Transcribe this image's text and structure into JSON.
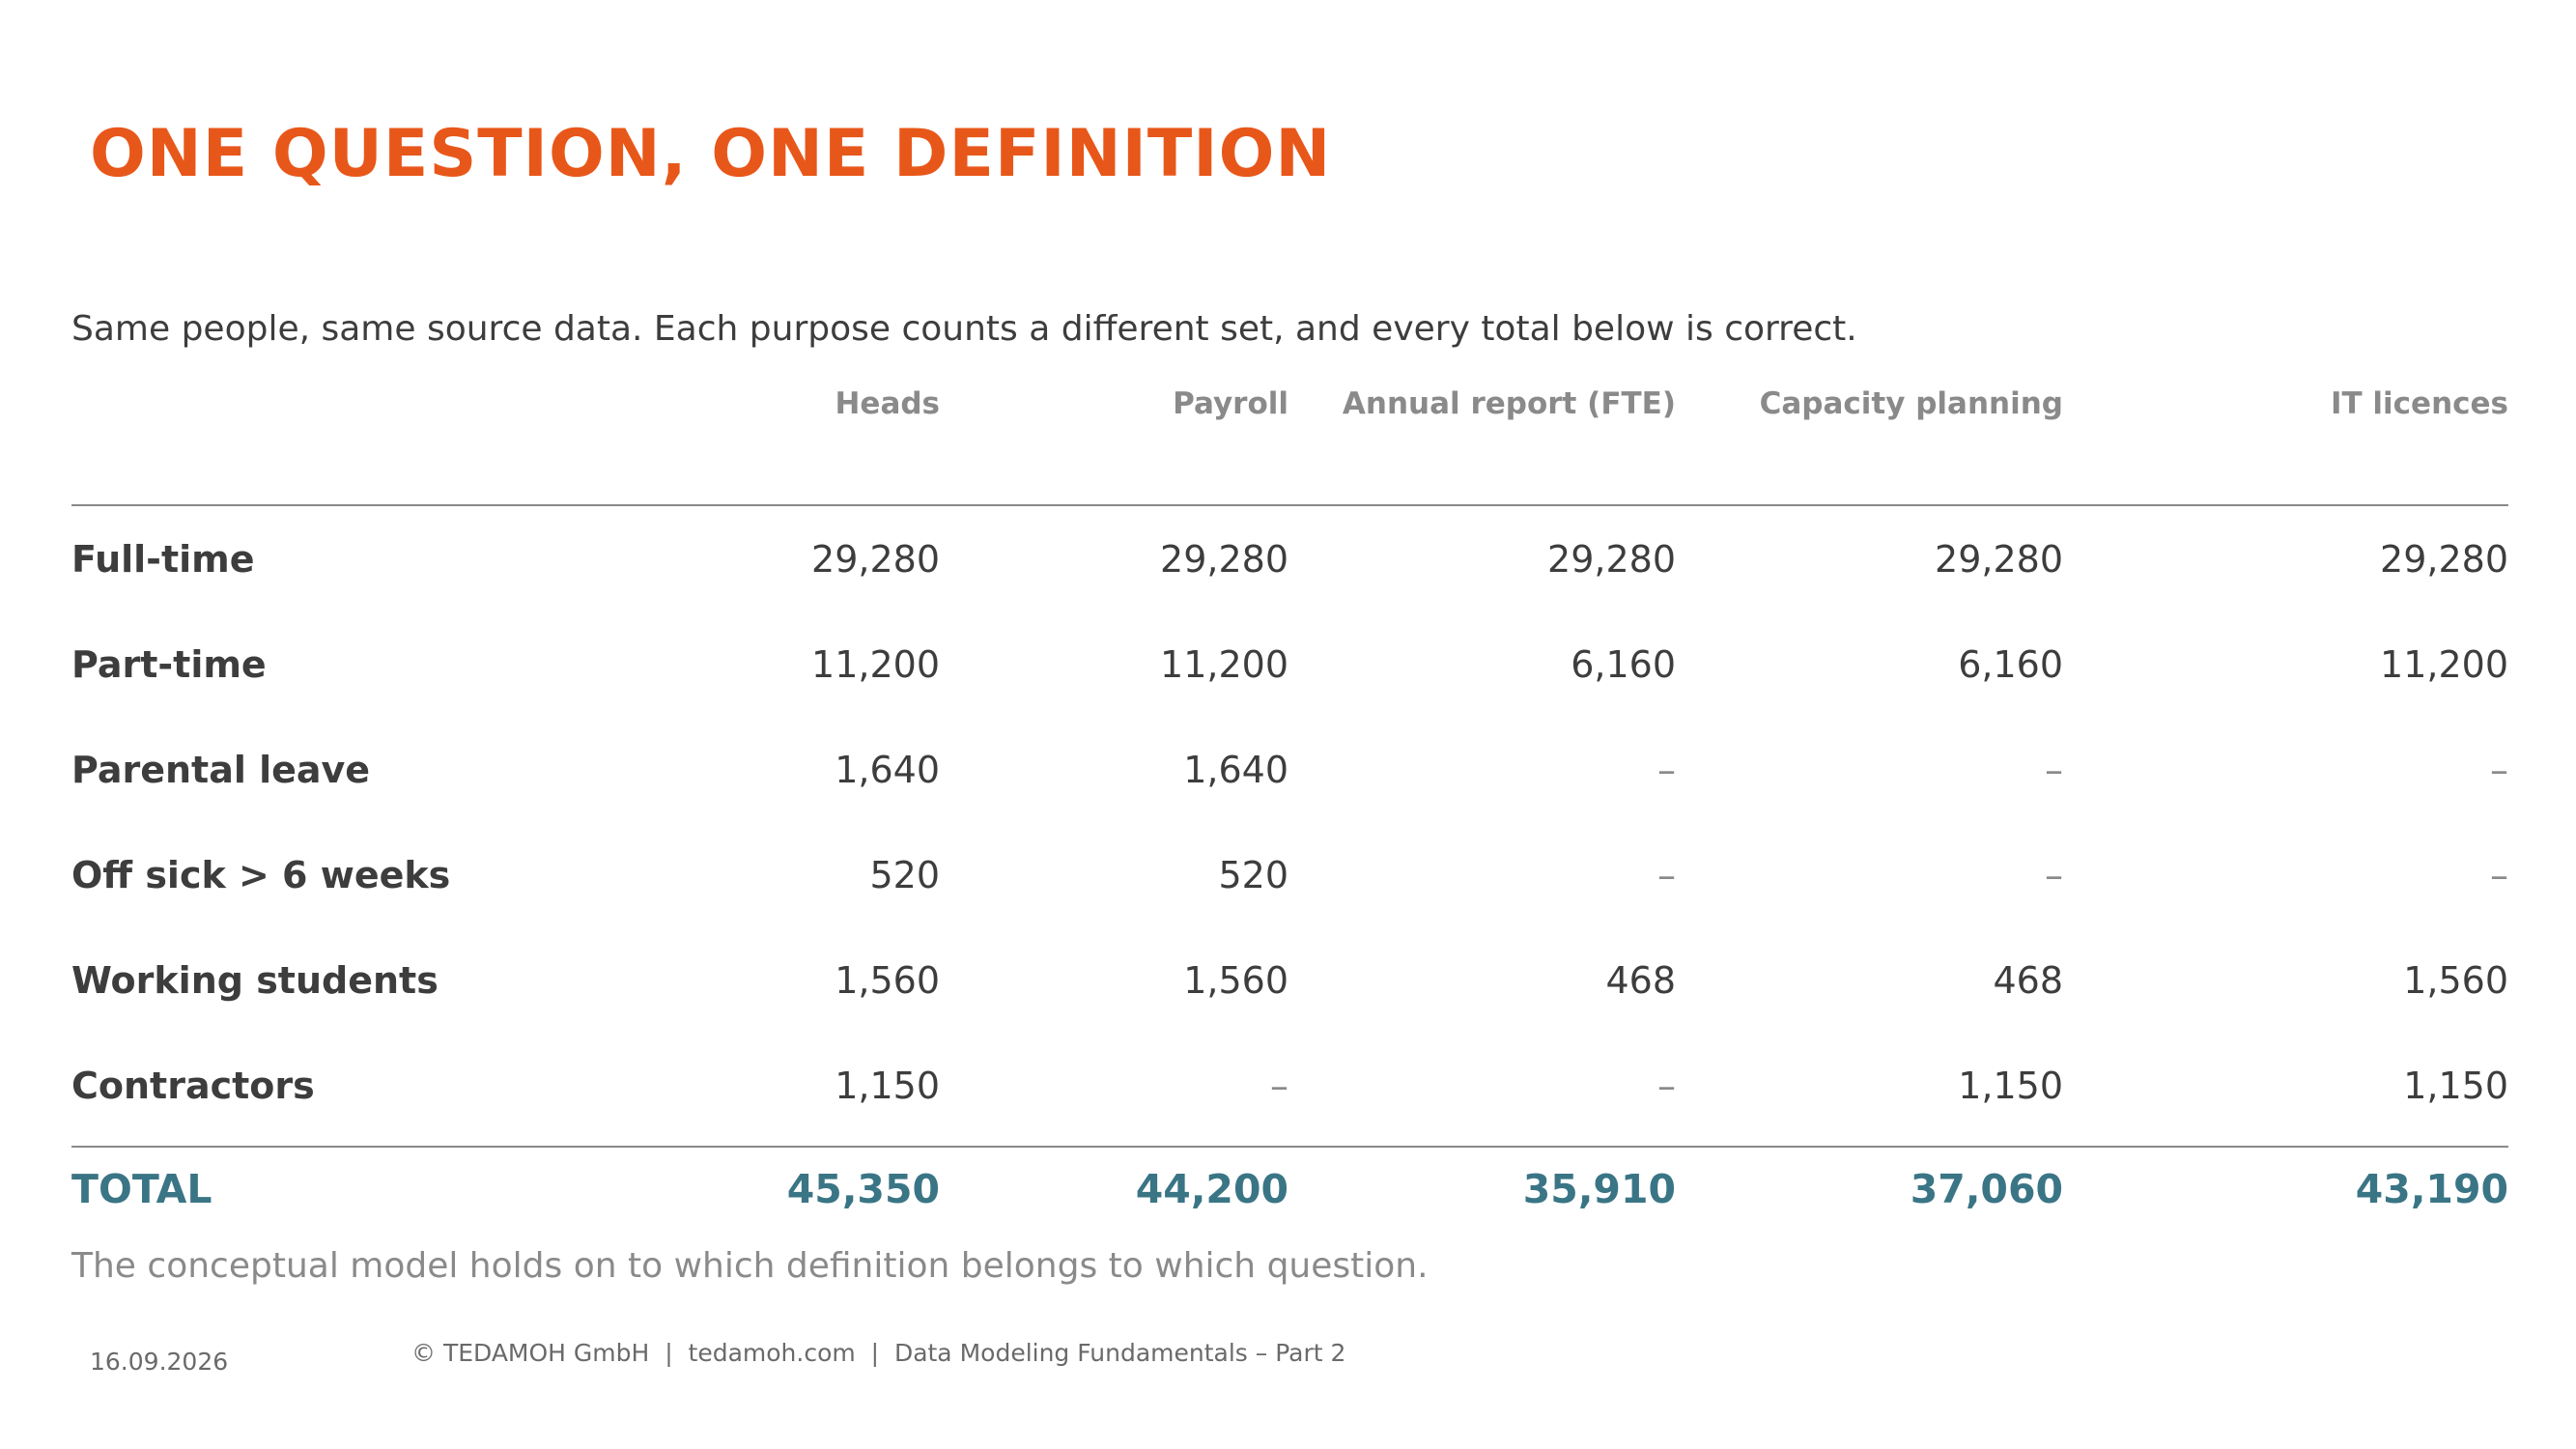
{
  "slide": {
    "title": "ONE QUESTION, ONE DEFINITION",
    "subtitle": "Same people, same source data. Each purpose counts a different set, and every total below is correct.",
    "footnote": "The conceptual model holds on to which definition belongs to which question."
  },
  "table": {
    "columns": [
      "",
      "Heads",
      "Payroll",
      "Annual report (FTE)",
      "Capacity planning",
      "IT licences"
    ],
    "rows": [
      {
        "label": "Full-time",
        "values": [
          "29,280",
          "29,280",
          "29,280",
          "29,280",
          "29,280"
        ]
      },
      {
        "label": "Part-time",
        "values": [
          "11,200",
          "11,200",
          "6,160",
          "6,160",
          "11,200"
        ]
      },
      {
        "label": "Parental leave",
        "values": [
          "1,640",
          "1,640",
          "–",
          "–",
          "–"
        ]
      },
      {
        "label": "Off sick > 6 weeks",
        "values": [
          "520",
          "520",
          "–",
          "–",
          "–"
        ]
      },
      {
        "label": "Working students",
        "values": [
          "1,560",
          "1,560",
          "468",
          "468",
          "1,560"
        ]
      },
      {
        "label": "Contractors",
        "values": [
          "1,150",
          "–",
          "–",
          "1,150",
          "1,150"
        ]
      }
    ],
    "total": {
      "label": "TOTAL",
      "values": [
        "45,350",
        "44,200",
        "35,910",
        "37,060",
        "43,190"
      ]
    }
  },
  "footer": {
    "date": "16.09.2026",
    "copyright": "© TEDAMOH GmbH  |  tedamoh.com  |  Data Modeling Fundamentals – Part 2"
  },
  "colors": {
    "title": "#e8571a",
    "total": "#3a7585",
    "text": "#3d3d3d",
    "muted": "#8a8a8a"
  }
}
